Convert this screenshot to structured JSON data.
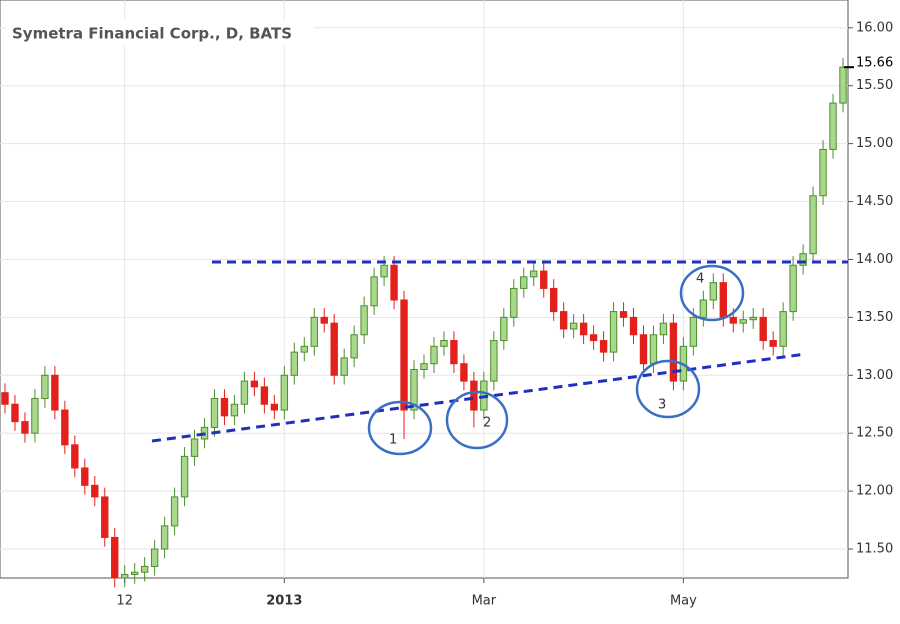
{
  "chart_data": {
    "type": "candlestick",
    "title": "Symetra Financial Corp., D, BATS",
    "categories": [
      null,
      null,
      null,
      null,
      null,
      null,
      null,
      null,
      null,
      null,
      null,
      null,
      "12",
      null,
      null,
      null,
      null,
      null,
      null,
      null,
      null,
      null,
      null,
      null,
      null,
      null,
      null,
      null,
      "2013",
      null,
      null,
      null,
      null,
      null,
      null,
      null,
      null,
      null,
      null,
      null,
      null,
      null,
      null,
      null,
      null,
      null,
      null,
      null,
      "Mar",
      null,
      null,
      null,
      null,
      null,
      null,
      null,
      null,
      null,
      null,
      null,
      null,
      null,
      null,
      null,
      null,
      null,
      null,
      null,
      "May",
      null,
      null,
      null,
      null,
      null,
      null,
      null,
      null,
      null,
      null,
      null,
      null,
      null,
      null,
      null,
      null
    ],
    "open": [
      12.85,
      12.75,
      12.6,
      12.5,
      12.8,
      13.0,
      12.7,
      12.4,
      12.2,
      12.05,
      11.95,
      11.6,
      11.25,
      11.28,
      11.3,
      11.35,
      11.5,
      11.7,
      11.95,
      12.3,
      12.45,
      12.55,
      12.8,
      12.65,
      12.75,
      12.95,
      12.9,
      12.75,
      12.7,
      13.0,
      13.2,
      13.25,
      13.5,
      13.45,
      13.0,
      13.15,
      13.35,
      13.6,
      13.85,
      13.95,
      13.65,
      12.7,
      13.05,
      13.1,
      13.25,
      13.3,
      13.1,
      12.95,
      12.7,
      12.95,
      13.3,
      13.5,
      13.75,
      13.85,
      13.9,
      13.75,
      13.55,
      13.4,
      13.45,
      13.35,
      13.3,
      13.2,
      13.55,
      13.5,
      13.35,
      13.1,
      13.35,
      13.45,
      12.95,
      13.25,
      13.5,
      13.65,
      13.8,
      13.5,
      13.45,
      13.48,
      13.5,
      13.3,
      13.25,
      13.55,
      13.95,
      14.05,
      14.55,
      14.95,
      15.35
    ],
    "high": [
      12.93,
      12.83,
      12.68,
      12.88,
      13.08,
      13.08,
      12.78,
      12.48,
      12.28,
      12.13,
      12.03,
      11.68,
      11.36,
      11.38,
      11.43,
      11.58,
      11.78,
      12.03,
      12.38,
      12.53,
      12.63,
      12.88,
      12.88,
      12.83,
      13.03,
      13.03,
      12.98,
      12.83,
      13.08,
      13.28,
      13.33,
      13.58,
      13.58,
      13.53,
      13.23,
      13.43,
      13.68,
      13.93,
      14.03,
      14.03,
      13.73,
      13.13,
      13.18,
      13.33,
      13.38,
      13.38,
      13.18,
      13.03,
      13.03,
      13.38,
      13.58,
      13.83,
      13.93,
      13.98,
      13.98,
      13.83,
      13.63,
      13.53,
      13.53,
      13.43,
      13.38,
      13.63,
      13.63,
      13.58,
      13.43,
      13.43,
      13.53,
      13.53,
      13.33,
      13.58,
      13.73,
      13.88,
      13.88,
      13.58,
      13.56,
      13.58,
      13.58,
      13.38,
      13.63,
      14.03,
      14.13,
      14.63,
      15.03,
      15.43,
      15.74
    ],
    "low": [
      12.67,
      12.52,
      12.42,
      12.42,
      12.72,
      12.62,
      12.32,
      12.12,
      11.97,
      11.87,
      11.52,
      11.17,
      11.17,
      11.2,
      11.22,
      11.27,
      11.42,
      11.62,
      11.87,
      12.22,
      12.37,
      12.47,
      12.57,
      12.57,
      12.67,
      12.82,
      12.67,
      12.62,
      12.62,
      12.92,
      13.12,
      13.17,
      13.37,
      12.92,
      12.92,
      13.07,
      13.27,
      13.52,
      13.77,
      13.57,
      12.45,
      12.62,
      12.97,
      13.02,
      13.17,
      13.02,
      12.87,
      12.55,
      12.62,
      12.87,
      13.22,
      13.42,
      13.67,
      13.77,
      13.67,
      13.47,
      13.32,
      13.32,
      13.27,
      13.22,
      13.12,
      13.12,
      13.42,
      13.27,
      13.02,
      13.02,
      13.27,
      12.87,
      12.87,
      13.17,
      13.42,
      13.57,
      13.42,
      13.37,
      13.37,
      13.4,
      13.22,
      13.17,
      13.17,
      13.47,
      13.87,
      13.97,
      14.47,
      14.87,
      15.27
    ],
    "close": [
      12.75,
      12.6,
      12.5,
      12.8,
      13.0,
      12.7,
      12.4,
      12.2,
      12.05,
      11.95,
      11.6,
      11.25,
      11.28,
      11.3,
      11.35,
      11.5,
      11.7,
      11.95,
      12.3,
      12.45,
      12.55,
      12.8,
      12.65,
      12.75,
      12.95,
      12.9,
      12.75,
      12.7,
      13.0,
      13.2,
      13.25,
      13.5,
      13.45,
      13.0,
      13.15,
      13.35,
      13.6,
      13.85,
      13.95,
      13.65,
      12.7,
      13.05,
      13.1,
      13.25,
      13.3,
      13.1,
      12.95,
      12.7,
      12.95,
      13.3,
      13.5,
      13.75,
      13.85,
      13.9,
      13.75,
      13.55,
      13.4,
      13.45,
      13.35,
      13.3,
      13.2,
      13.55,
      13.5,
      13.35,
      13.1,
      13.35,
      13.45,
      12.95,
      13.25,
      13.5,
      13.65,
      13.8,
      13.5,
      13.45,
      13.48,
      13.5,
      13.3,
      13.25,
      13.55,
      13.95,
      14.05,
      14.55,
      14.95,
      15.35,
      15.66
    ],
    "up_color": "#a8d88c",
    "up_edge": "#4e8d2c",
    "down_color": "#e3211c",
    "ylim": [
      11.25,
      16.24
    ],
    "yticks": [
      {
        "value": 11.5,
        "label": "11.50"
      },
      {
        "value": 12,
        "label": "12.00"
      },
      {
        "value": 12.5,
        "label": "12.50"
      },
      {
        "value": 13,
        "label": "13.00"
      },
      {
        "value": 13.5,
        "label": "13.50"
      },
      {
        "value": 14,
        "label": "14.00"
      },
      {
        "value": 14.5,
        "label": "14.50"
      },
      {
        "value": 15,
        "label": "15.00"
      },
      {
        "value": 15.5,
        "label": "15.50"
      },
      {
        "value": 16,
        "label": "16.00"
      }
    ],
    "last_price": {
      "value": 15.66,
      "label": "15.66"
    },
    "annotations": [
      "1",
      "2",
      "3",
      "4"
    ],
    "grid": true
  }
}
